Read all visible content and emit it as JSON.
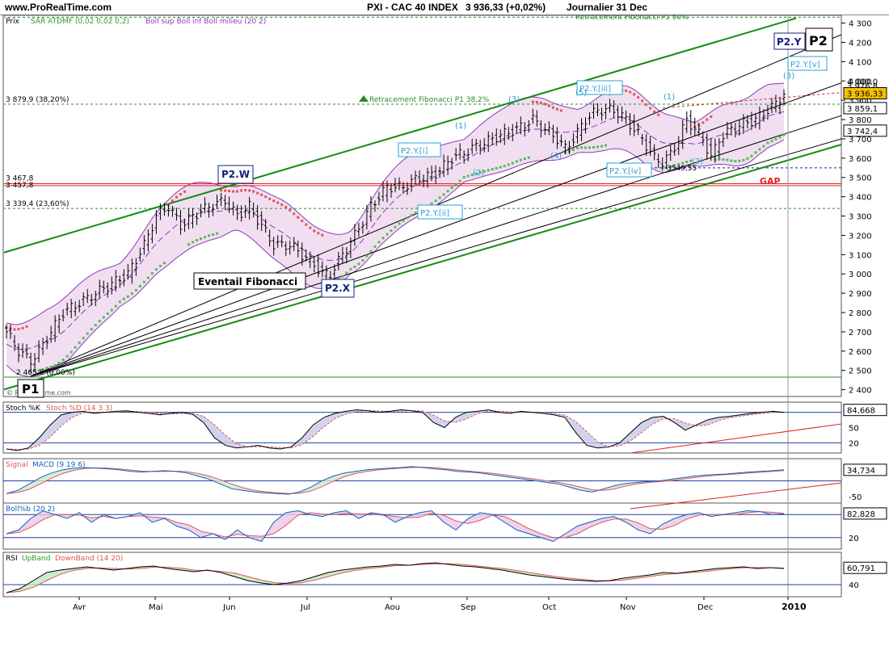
{
  "header": {
    "site": "www.ProRealTime.com",
    "title": "PXI - CAC 40 INDEX",
    "price": "3 936,33 (+0,02%)",
    "period": "Journalier  31 Dec"
  },
  "colors": {
    "bull_candle": "#000000",
    "sar_up": "#55bb55",
    "sar_down": "#e05555",
    "boll_band": "#8a3ab9",
    "boll_fill": "#f1dff1",
    "channel": "#138b13",
    "gap": "#e02020",
    "wave_label": "#29a0d8",
    "wave_label_dark": "#102080"
  },
  "chart_data": [
    {
      "type": "line",
      "name": "main",
      "legend": [
        "Prix",
        "SAR ATDMF (0,02 0,02 0,2)",
        "Boll sup Boll inf Boll milieu (20 2)"
      ],
      "x_ticks": [
        "Avr",
        "Mai",
        "Jun",
        "Jul",
        "Aou",
        "Sep",
        "Oct",
        "Nov",
        "Dec",
        "2010"
      ],
      "y_ticks": [
        "4 300",
        "4 200",
        "4 100",
        "4 000",
        "3 900",
        "3 800",
        "3 700",
        "3 600",
        "3 500",
        "3 400",
        "3 300",
        "3 200",
        "3 100",
        "3 000",
        "2 900",
        "2 800",
        "2 700",
        "2 600",
        "2 500",
        "2 400"
      ],
      "ylim": [
        2365,
        4340
      ],
      "close_points": [
        [
          0,
          2700
        ],
        [
          3,
          2600
        ],
        [
          6,
          2550
        ],
        [
          8,
          2600
        ],
        [
          11,
          2700
        ],
        [
          14,
          2800
        ],
        [
          18,
          2850
        ],
        [
          22,
          2900
        ],
        [
          26,
          2950
        ],
        [
          30,
          3000
        ],
        [
          34,
          3150
        ],
        [
          37,
          3300
        ],
        [
          40,
          3350
        ],
        [
          43,
          3250
        ],
        [
          46,
          3300
        ],
        [
          50,
          3350
        ],
        [
          54,
          3380
        ],
        [
          57,
          3300
        ],
        [
          60,
          3350
        ],
        [
          63,
          3250
        ],
        [
          66,
          3150
        ],
        [
          70,
          3150
        ],
        [
          73,
          3100
        ],
        [
          76,
          3050
        ],
        [
          78,
          3000
        ],
        [
          80,
          3000
        ],
        [
          83,
          3100
        ],
        [
          86,
          3200
        ],
        [
          90,
          3350
        ],
        [
          94,
          3450
        ],
        [
          98,
          3450
        ],
        [
          100,
          3480
        ],
        [
          103,
          3500
        ],
        [
          106,
          3520
        ],
        [
          110,
          3600
        ],
        [
          114,
          3640
        ],
        [
          118,
          3680
        ],
        [
          122,
          3720
        ],
        [
          126,
          3750
        ],
        [
          130,
          3800
        ],
        [
          133,
          3750
        ],
        [
          136,
          3700
        ],
        [
          138,
          3650
        ],
        [
          140,
          3700
        ],
        [
          143,
          3800
        ],
        [
          146,
          3850
        ],
        [
          150,
          3850
        ],
        [
          153,
          3800
        ],
        [
          155,
          3750
        ],
        [
          157,
          3700
        ],
        [
          160,
          3600
        ],
        [
          162,
          3580
        ],
        [
          164,
          3620
        ],
        [
          166,
          3700
        ],
        [
          168,
          3800
        ],
        [
          170,
          3750
        ],
        [
          172,
          3700
        ],
        [
          174,
          3600
        ],
        [
          176,
          3700
        ],
        [
          179,
          3750
        ],
        [
          182,
          3780
        ],
        [
          185,
          3800
        ],
        [
          188,
          3850
        ],
        [
          190,
          3880
        ],
        [
          192,
          3940
        ]
      ],
      "price_labels": [
        {
          "value": "4 000,0",
          "price": 4000,
          "box": false
        },
        {
          "value": "3 976,8",
          "price": 3976.8,
          "box": false
        },
        {
          "value": "3 936,33",
          "price": 3936.33,
          "box": true,
          "fill": "#f5c000"
        },
        {
          "value": "3 859,1",
          "price": 3859.1,
          "box": true,
          "fill": "#ffffff"
        },
        {
          "value": "3 742,4",
          "price": 3742.4,
          "box": true,
          "fill": "#ffffff"
        }
      ],
      "fib_levels": [
        {
          "label": "3 879,9 (38,20%)",
          "price": 3879.9
        },
        {
          "label": "3 339,4 (23,60%)",
          "price": 3339.4
        },
        {
          "label": "2 465,5 (0,00%)",
          "price": 2465.5
        }
      ],
      "gap_levels": [
        {
          "label": "3 467,8",
          "price": 3467.8
        },
        {
          "label": "3 457,8",
          "price": 3457.8
        }
      ],
      "low_marker": {
        "label": "3549,55",
        "price": 3549.55
      },
      "annotations": {
        "fib_retrace_top": "Retracement Fibonacci P1 50%",
        "fib_retrace": "Retracement Fibonacci P1 38,2%",
        "fan": "Eventail Fibonacci",
        "gap": "GAP",
        "watermark": "© ProRealTime.com"
      },
      "wave_labels": {
        "P1": "P1",
        "P2": "P2",
        "P2W": "P2.W",
        "P2X": "P2.X",
        "P2Y": "P2.Y",
        "Yi": "P2.Y.[i]",
        "Yii": "P2.Y.[ii]",
        "Yiii": "P2.Y.[iii]",
        "Yiv": "P2.Y.[iv]",
        "Yv": "P2.Y.[v]",
        "n1": "(1)",
        "n2": "(2)",
        "n3": "(3)",
        "n4": "(4)",
        "n5": "(5)",
        "n1b": "(1)",
        "n2b": "(2)",
        "n3b": "(3)"
      }
    },
    {
      "type": "line",
      "name": "stochastic",
      "legend": [
        "Stoch %K",
        "Stoch %D (14 3 3)"
      ],
      "ylim": [
        0,
        100
      ],
      "levels": [
        80,
        20
      ],
      "y_ticks": [
        "50",
        "20"
      ],
      "last_value": "84,668",
      "values": [
        8,
        5,
        10,
        30,
        55,
        75,
        80,
        82,
        78,
        80,
        82,
        83,
        80,
        78,
        75,
        78,
        80,
        76,
        60,
        30,
        15,
        10,
        12,
        15,
        10,
        8,
        12,
        30,
        55,
        70,
        78,
        82,
        85,
        83,
        80,
        82,
        85,
        83,
        80,
        60,
        50,
        70,
        80,
        82,
        85,
        80,
        78,
        82,
        80,
        78,
        75,
        70,
        40,
        15,
        10,
        12,
        20,
        40,
        60,
        70,
        72,
        60,
        45,
        55,
        65,
        70,
        72,
        75,
        78,
        80,
        82,
        80
      ]
    },
    {
      "type": "line",
      "name": "macd",
      "legend": [
        "Signal",
        "MACD (9 19 6)"
      ],
      "ylim": [
        -70,
        70
      ],
      "levels": [
        0
      ],
      "y_ticks": [
        "-50"
      ],
      "last_value": "34,734",
      "values": [
        -40,
        -30,
        -10,
        10,
        25,
        35,
        40,
        42,
        40,
        38,
        35,
        30,
        28,
        30,
        32,
        30,
        25,
        15,
        5,
        -10,
        -25,
        -30,
        -35,
        -38,
        -40,
        -42,
        -35,
        -20,
        0,
        15,
        25,
        30,
        35,
        38,
        40,
        42,
        45,
        42,
        38,
        35,
        30,
        28,
        25,
        20,
        15,
        10,
        5,
        0,
        -5,
        -10,
        -20,
        -30,
        -35,
        -25,
        -15,
        -8,
        -5,
        -2,
        0,
        5,
        10,
        15,
        18,
        20,
        22,
        25,
        28,
        30,
        32,
        35
      ]
    },
    {
      "type": "line",
      "name": "boll_b",
      "legend": [
        "Boll%b (20 2)"
      ],
      "ylim": [
        -10,
        110
      ],
      "levels": [
        80,
        20
      ],
      "y_ticks": [
        "20"
      ],
      "last_value": "82,828",
      "values": [
        30,
        40,
        70,
        90,
        80,
        70,
        85,
        60,
        80,
        70,
        75,
        85,
        60,
        70,
        50,
        40,
        20,
        30,
        15,
        40,
        20,
        10,
        60,
        85,
        90,
        80,
        75,
        85,
        90,
        70,
        85,
        80,
        60,
        75,
        85,
        90,
        60,
        40,
        70,
        85,
        80,
        60,
        40,
        30,
        20,
        10,
        30,
        50,
        60,
        70,
        75,
        60,
        40,
        30,
        55,
        70,
        80,
        85,
        75,
        80,
        85,
        90,
        88,
        80,
        82
      ]
    },
    {
      "type": "line",
      "name": "rsi",
      "legend": [
        "RSI",
        "UpBand",
        "DownBand (14 20)"
      ],
      "ylim": [
        25,
        80
      ],
      "levels": [
        40
      ],
      "y_ticks": [
        "40"
      ],
      "last_value": "60,791",
      "values": [
        30,
        35,
        45,
        55,
        58,
        60,
        62,
        60,
        58,
        60,
        62,
        63,
        60,
        58,
        56,
        58,
        55,
        50,
        45,
        42,
        40,
        42,
        45,
        50,
        55,
        58,
        60,
        62,
        63,
        65,
        64,
        66,
        67,
        65,
        63,
        62,
        60,
        58,
        55,
        52,
        50,
        48,
        46,
        45,
        44,
        45,
        48,
        50,
        52,
        55,
        54,
        56,
        58,
        60,
        61,
        62,
        60,
        61,
        60
      ]
    }
  ]
}
